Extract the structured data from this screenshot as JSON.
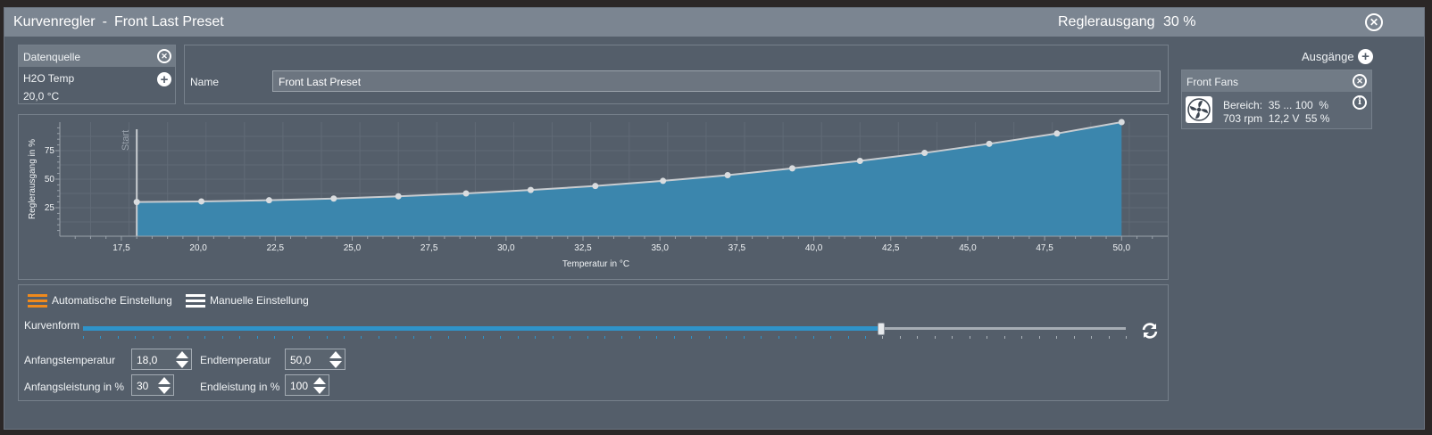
{
  "window": {
    "title": "Kurvenregler",
    "separator": "-",
    "preset_name": "Front Last Preset",
    "output_label": "Reglerausgang",
    "output_value": "30 %"
  },
  "datasource": {
    "header": "Datenquelle",
    "sensor": "H2O Temp",
    "value": "20,0 °C"
  },
  "name_field": {
    "label": "Name",
    "value": "Front Last Preset"
  },
  "outputs": {
    "label": "Ausgänge",
    "card": {
      "title": "Front Fans",
      "range_line": "Bereich:  35 ... 100  %",
      "status_line": "703 rpm  12,2 V  55 %"
    }
  },
  "chart_data": {
    "type": "area",
    "xlabel": "Temperatur in °C",
    "ylabel": "Reglerausgang in %",
    "start_label": "Start",
    "start_x": 18.0,
    "xlim": [
      15.5,
      51.5
    ],
    "ylim": [
      0,
      100
    ],
    "x_ticks": [
      "17,5",
      "20,0",
      "22,5",
      "25,0",
      "27,5",
      "30,0",
      "32,5",
      "35,0",
      "37,5",
      "40,0",
      "42,5",
      "45,0",
      "47,5",
      "50,0"
    ],
    "x_tick_values": [
      17.5,
      20,
      22.5,
      25,
      27.5,
      30,
      32.5,
      35,
      37.5,
      40,
      42.5,
      45,
      47.5,
      50
    ],
    "y_ticks": [
      "25",
      "50",
      "75"
    ],
    "y_tick_values": [
      25,
      50,
      75
    ],
    "x": [
      18.0,
      20.1,
      22.3,
      24.4,
      26.5,
      28.7,
      30.8,
      32.9,
      35.1,
      37.2,
      39.3,
      41.5,
      43.6,
      45.7,
      47.9,
      50.0
    ],
    "y": [
      30,
      30.5,
      31.5,
      33,
      35,
      37.5,
      40.5,
      44,
      48.5,
      53.5,
      59.5,
      66,
      73,
      81,
      90,
      100
    ],
    "fill_color": "#3b86ad",
    "line_color": "#c8ccd0",
    "grid": true
  },
  "settings": {
    "auto_label": "Automatische Einstellung",
    "manual_label": "Manuelle Einstellung",
    "auto_icon_color": "#f08a1c",
    "curve_label": "Kurvenform",
    "curve_value_fraction": 0.765,
    "start_temp_label": "Anfangstemperatur",
    "start_temp_value": "18,0",
    "end_temp_label": "Endtemperatur",
    "end_temp_value": "50,0",
    "start_power_label": "Anfangsleistung in %",
    "start_power_value": "30",
    "end_power_label": "Endleistung in %",
    "end_power_value": "100"
  }
}
